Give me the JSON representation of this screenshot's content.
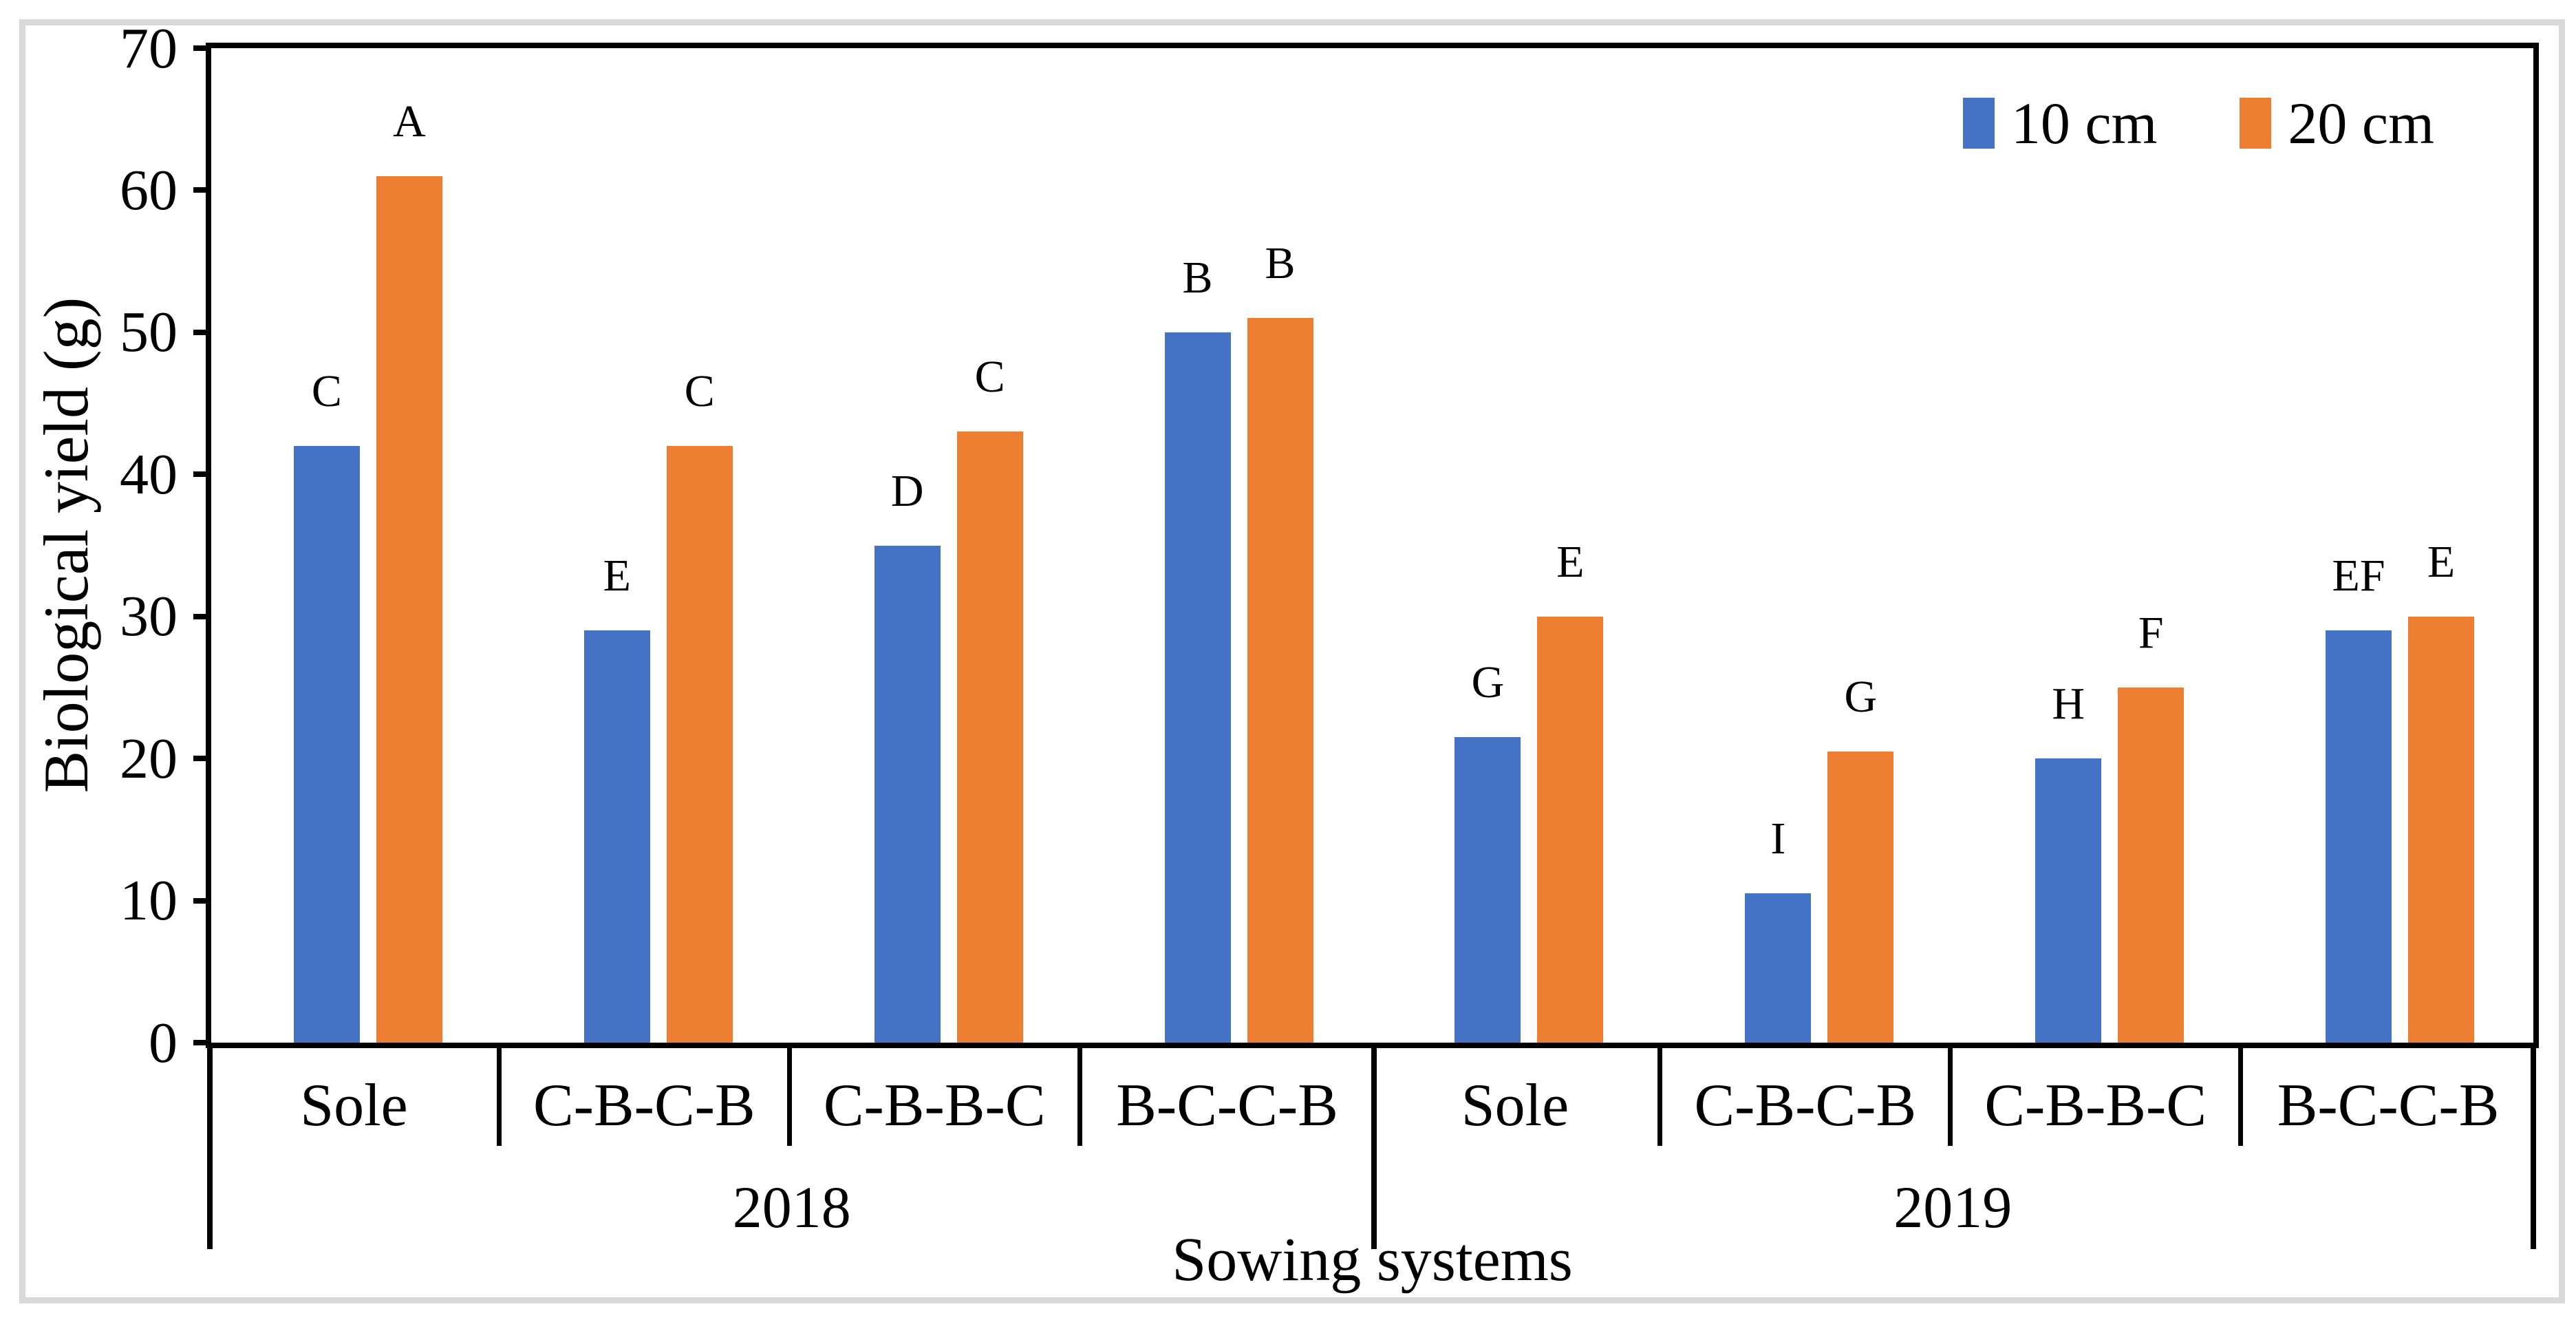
{
  "chart_data": {
    "type": "bar",
    "title": "",
    "ylabel": "Biological yield (g)",
    "xlabel": "Sowing systems",
    "ylim": [
      0,
      70
    ],
    "yticks": [
      0,
      10,
      20,
      30,
      40,
      50,
      60,
      70
    ],
    "grid": false,
    "legend_position": "top-right",
    "year_groups": [
      "2018",
      "2019"
    ],
    "categories": [
      "Sole",
      "C-B-C-B",
      "C-B-B-C",
      "B-C-C-B",
      "Sole",
      "C-B-C-B",
      "C-B-B-C",
      "B-C-C-B"
    ],
    "series": [
      {
        "name": "10 cm",
        "color": "#4472C4",
        "values": [
          42,
          29,
          35,
          50,
          21.5,
          10.5,
          20,
          29
        ],
        "labels": [
          "C",
          "E",
          "D",
          "B",
          "G",
          "I",
          "H",
          "EF"
        ]
      },
      {
        "name": "20 cm",
        "color": "#ED7D31",
        "values": [
          61,
          42,
          43,
          51,
          30,
          20.5,
          25,
          30
        ],
        "labels": [
          "A",
          "C",
          "C",
          "B",
          "E",
          "G",
          "F",
          "E"
        ]
      }
    ]
  },
  "frame_color": "#d9d9d9",
  "axis_color": "#000000"
}
